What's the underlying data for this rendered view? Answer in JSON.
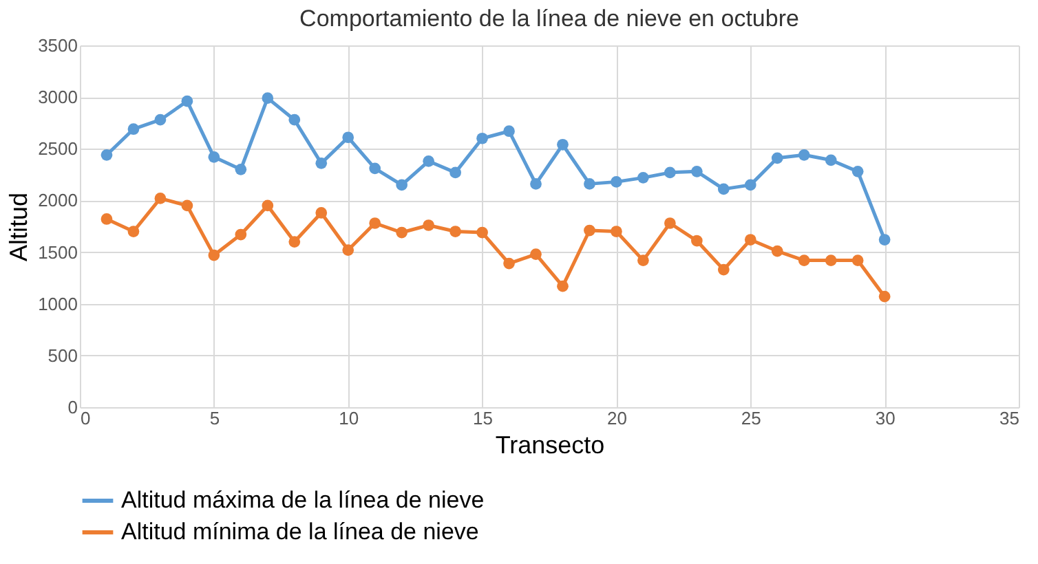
{
  "chart_data": {
    "type": "line",
    "title": "Comportamiento de la línea de nieve en octubre",
    "xlabel": "Transecto",
    "ylabel": "Altitud",
    "x": [
      1,
      2,
      3,
      4,
      5,
      6,
      7,
      8,
      9,
      10,
      11,
      12,
      13,
      14,
      15,
      16,
      17,
      18,
      19,
      20,
      21,
      22,
      23,
      24,
      25,
      26,
      27,
      28,
      29,
      30
    ],
    "series": [
      {
        "name": "Altitud máxima de la línea de nieve",
        "color": "#5b9bd5",
        "values": [
          2440,
          2690,
          2780,
          2960,
          2420,
          2300,
          2990,
          2780,
          2360,
          2610,
          2310,
          2150,
          2380,
          2270,
          2600,
          2670,
          2160,
          2540,
          2160,
          2180,
          2220,
          2270,
          2280,
          2110,
          2150,
          2410,
          2440,
          2390,
          2280,
          1620
        ]
      },
      {
        "name": "Altitud mínima de la línea de nieve",
        "color": "#ed7d31",
        "values": [
          1820,
          1700,
          2020,
          1950,
          1470,
          1670,
          1950,
          1600,
          1880,
          1520,
          1780,
          1690,
          1760,
          1700,
          1690,
          1390,
          1480,
          1170,
          1710,
          1700,
          1420,
          1780,
          1610,
          1330,
          1620,
          1510,
          1420,
          1420,
          1420,
          1070
        ]
      }
    ],
    "xlim": [
      0,
      35
    ],
    "xticks": [
      0,
      5,
      10,
      15,
      20,
      25,
      30,
      35
    ],
    "ylim": [
      0,
      3500
    ],
    "yticks": [
      0,
      500,
      1000,
      1500,
      2000,
      2500,
      3000,
      3500
    ],
    "grid": true,
    "legend": "bottom",
    "marker": "circle",
    "line_style": "solid"
  }
}
